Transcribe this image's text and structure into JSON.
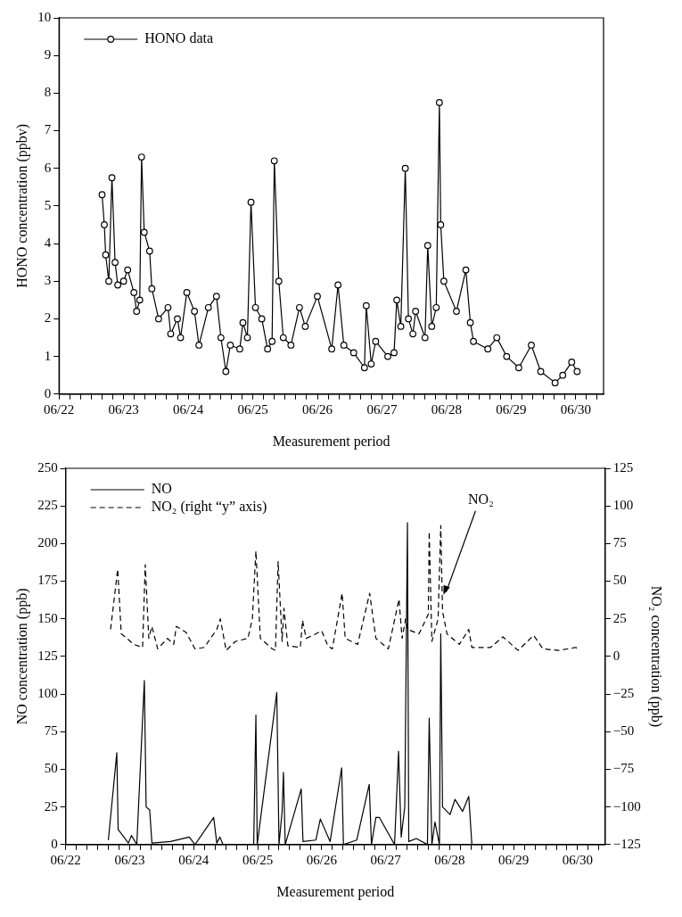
{
  "chart_data": [
    {
      "type": "line",
      "xlabel": "Measurement period",
      "ylabel": "HONO concentration (ppbv)",
      "legend": "top left",
      "marker": "circle",
      "grid": false,
      "xlim": [
        "--06-22",
        "--06-30T10:20"
      ],
      "ylim": [
        0,
        10
      ],
      "yticks": [
        0,
        1,
        2,
        3,
        4,
        5,
        6,
        7,
        8,
        9,
        10
      ],
      "xticks": [
        {
          "value": "--06-22",
          "label": "06/22"
        },
        {
          "value": "--06-22T04:00",
          "label": null
        },
        {
          "value": "--06-22T08:00",
          "label": null
        },
        {
          "value": "--06-22T12:00",
          "label": null
        },
        {
          "value": "--06-22T16:00",
          "label": null
        },
        {
          "value": "--06-22T20:00",
          "label": null
        },
        {
          "value": "--06-23",
          "label": "06/23"
        },
        {
          "value": "--06-23T04:00",
          "label": null
        },
        {
          "value": "--06-23T08:00",
          "label": null
        },
        {
          "value": "--06-23T12:00",
          "label": null
        },
        {
          "value": "--06-23T16:00",
          "label": null
        },
        {
          "value": "--06-23T20:00",
          "label": null
        },
        {
          "value": "--06-24",
          "label": "06/24"
        },
        {
          "value": "--06-24T04:00",
          "label": null
        },
        {
          "value": "--06-24T08:00",
          "label": null
        },
        {
          "value": "--06-24T12:00",
          "label": null
        },
        {
          "value": "--06-24T16:00",
          "label": null
        },
        {
          "value": "--06-24T20:00",
          "label": null
        },
        {
          "value": "--06-25",
          "label": "06/25"
        },
        {
          "value": "--06-25T04:00",
          "label": null
        },
        {
          "value": "--06-25T08:00",
          "label": null
        },
        {
          "value": "--06-25T12:00",
          "label": null
        },
        {
          "value": "--06-25T16:00",
          "label": null
        },
        {
          "value": "--06-25T20:00",
          "label": null
        },
        {
          "value": "--06-26",
          "label": "06/26"
        },
        {
          "value": "--06-26T04:00",
          "label": null
        },
        {
          "value": "--06-26T08:00",
          "label": null
        },
        {
          "value": "--06-26T12:00",
          "label": null
        },
        {
          "value": "--06-26T16:00",
          "label": null
        },
        {
          "value": "--06-26T20:00",
          "label": null
        },
        {
          "value": "--06-27",
          "label": "06/27"
        },
        {
          "value": "--06-27T04:00",
          "label": null
        },
        {
          "value": "--06-27T08:00",
          "label": null
        },
        {
          "value": "--06-27T12:00",
          "label": null
        },
        {
          "value": "--06-27T16:00",
          "label": null
        },
        {
          "value": "--06-27T20:00",
          "label": null
        },
        {
          "value": "--06-28",
          "label": "06/28"
        },
        {
          "value": "--06-28T04:00",
          "label": null
        },
        {
          "value": "--06-28T08:00",
          "label": null
        },
        {
          "value": "--06-28T12:00",
          "label": null
        },
        {
          "value": "--06-28T16:00",
          "label": null
        },
        {
          "value": "--06-28T20:00",
          "label": null
        },
        {
          "value": "--06-29",
          "label": "06/29"
        },
        {
          "value": "--06-29T04:00",
          "label": null
        },
        {
          "value": "--06-29T08:00",
          "label": null
        },
        {
          "value": "--06-29T12:00",
          "label": null
        },
        {
          "value": "--06-29T16:00",
          "label": null
        },
        {
          "value": "--06-29T20:00",
          "label": null
        },
        {
          "value": "--06-30",
          "label": "06/30"
        },
        {
          "value": "--06-30T04:00",
          "label": null
        },
        {
          "value": "--06-30T08:00",
          "label": null
        }
      ],
      "series": [
        {
          "name": "HONO data",
          "color": "#000000",
          "line_style": "solid",
          "x": [
            "--06-22T16:00",
            "--06-22T16:50",
            "--06-22T17:20",
            "--06-22T18:30",
            "--06-22T19:40",
            "--06-22T20:50",
            "--06-22T21:50",
            "--06-23",
            "--06-23T01:30",
            "--06-23T03:50",
            "--06-23T04:50",
            "--06-23T06:00",
            "--06-23T06:40",
            "--06-23T07:40",
            "--06-23T09:40",
            "--06-23T10:30",
            "--06-23T13:00",
            "--06-23T16:30",
            "--06-23T17:30",
            "--06-23T20:00",
            "--06-23T21:10",
            "--06-23T23:30",
            "--06-24T02:20",
            "--06-24T04:00",
            "--06-24T07:30",
            "--06-24T10:30",
            "--06-24T12:10",
            "--06-24T14:00",
            "--06-24T15:40",
            "--06-24T19:10",
            "--06-24T20:20",
            "--06-24T22:00",
            "--06-24T23:20",
            "--06-25T01:00",
            "--06-25T03:20",
            "--06-25T05:30",
            "--06-25T07:10",
            "--06-25T08:00",
            "--06-25T09:40",
            "--06-25T11:20",
            "--06-25T14:10",
            "--06-25T17:20",
            "--06-25T19:30",
            "--06-26",
            "--06-26T05:20",
            "--06-26T07:40",
            "--06-26T09:50",
            "--06-26T13:30",
            "--06-26T17:30",
            "--06-26T18:10",
            "--06-26T20:00",
            "--06-26T21:40",
            "--06-27T02:10",
            "--06-27T04:30",
            "--06-27T05:30",
            "--06-27T07:00",
            "--06-27T08:40",
            "--06-27T09:50",
            "--06-27T11:30",
            "--06-27T12:30",
            "--06-27T16:00",
            "--06-27T17:00",
            "--06-27T18:30",
            "--06-27T20:10",
            "--06-27T21:20",
            "--06-27T21:50",
            "--06-27T23:00",
            "--06-28T03:40",
            "--06-28T07:10",
            "--06-28T08:50",
            "--06-28T10:00",
            "--06-28T15:20",
            "--06-28T18:40",
            "--06-28T22:20",
            "--06-29T02:50",
            "--06-29T07:30",
            "--06-29T11:00",
            "--06-29T16:20",
            "--06-29T19:10",
            "--06-29T22:30",
            "--06-30T00:30"
          ],
          "values": [
            5.3,
            4.5,
            3.7,
            3.0,
            5.75,
            3.5,
            2.9,
            3.0,
            3.3,
            2.7,
            2.2,
            2.5,
            6.3,
            4.3,
            3.8,
            2.8,
            2.0,
            2.3,
            1.6,
            2.0,
            1.5,
            2.7,
            2.2,
            1.3,
            2.3,
            2.6,
            1.5,
            0.6,
            1.3,
            1.2,
            1.9,
            1.5,
            5.1,
            2.3,
            2.0,
            1.2,
            1.4,
            6.2,
            3.0,
            1.5,
            1.3,
            2.3,
            1.8,
            2.6,
            1.2,
            2.9,
            1.3,
            1.1,
            0.7,
            2.35,
            0.8,
            1.4,
            1.0,
            1.1,
            2.5,
            1.8,
            6.0,
            2.0,
            1.6,
            2.2,
            1.5,
            3.95,
            1.8,
            2.3,
            7.75,
            4.5,
            3.0,
            2.2,
            3.3,
            1.9,
            1.4,
            1.2,
            1.5,
            1.0,
            0.7,
            1.3,
            0.6,
            0.3,
            0.5,
            0.85,
            0.6
          ]
        }
      ]
    },
    {
      "type": "line",
      "xlabel": "Measurement period",
      "ylabel": "NO concentration (ppb)",
      "y2label": "NO₂ concentration (ppb)",
      "legend": "top left",
      "marker": "none",
      "grid": false,
      "xlim": [
        "--06-22",
        "--06-30T10:20"
      ],
      "ylim": [
        0,
        250
      ],
      "yticks": [
        0,
        25,
        50,
        75,
        100,
        125,
        150,
        175,
        200,
        225,
        250
      ],
      "y2lim": [
        -125,
        125
      ],
      "y2ticks": [
        -125,
        -100,
        -75,
        -50,
        -25,
        0,
        25,
        50,
        75,
        100,
        125
      ],
      "xticks": [
        {
          "value": "--06-22",
          "label": "06/22"
        },
        {
          "value": "--06-22T04:00",
          "label": null
        },
        {
          "value": "--06-22T08:00",
          "label": null
        },
        {
          "value": "--06-22T12:00",
          "label": null
        },
        {
          "value": "--06-22T16:00",
          "label": null
        },
        {
          "value": "--06-22T20:00",
          "label": null
        },
        {
          "value": "--06-23",
          "label": "06/23"
        },
        {
          "value": "--06-23T04:00",
          "label": null
        },
        {
          "value": "--06-23T08:00",
          "label": null
        },
        {
          "value": "--06-23T12:00",
          "label": null
        },
        {
          "value": "--06-23T16:00",
          "label": null
        },
        {
          "value": "--06-23T20:00",
          "label": null
        },
        {
          "value": "--06-24",
          "label": "06/24"
        },
        {
          "value": "--06-24T04:00",
          "label": null
        },
        {
          "value": "--06-24T08:00",
          "label": null
        },
        {
          "value": "--06-24T12:00",
          "label": null
        },
        {
          "value": "--06-24T16:00",
          "label": null
        },
        {
          "value": "--06-24T20:00",
          "label": null
        },
        {
          "value": "--06-25",
          "label": "06/25"
        },
        {
          "value": "--06-25T04:00",
          "label": null
        },
        {
          "value": "--06-25T08:00",
          "label": null
        },
        {
          "value": "--06-25T12:00",
          "label": null
        },
        {
          "value": "--06-25T16:00",
          "label": null
        },
        {
          "value": "--06-25T20:00",
          "label": null
        },
        {
          "value": "--06-26",
          "label": "06/26"
        },
        {
          "value": "--06-26T04:00",
          "label": null
        },
        {
          "value": "--06-26T08:00",
          "label": null
        },
        {
          "value": "--06-26T12:00",
          "label": null
        },
        {
          "value": "--06-26T16:00",
          "label": null
        },
        {
          "value": "--06-26T20:00",
          "label": null
        },
        {
          "value": "--06-27",
          "label": "06/27"
        },
        {
          "value": "--06-27T04:00",
          "label": null
        },
        {
          "value": "--06-27T08:00",
          "label": null
        },
        {
          "value": "--06-27T12:00",
          "label": null
        },
        {
          "value": "--06-27T16:00",
          "label": null
        },
        {
          "value": "--06-27T20:00",
          "label": null
        },
        {
          "value": "--06-28",
          "label": "06/28"
        },
        {
          "value": "--06-28T04:00",
          "label": null
        },
        {
          "value": "--06-28T08:00",
          "label": null
        },
        {
          "value": "--06-28T12:00",
          "label": null
        },
        {
          "value": "--06-28T16:00",
          "label": null
        },
        {
          "value": "--06-28T20:00",
          "label": null
        },
        {
          "value": "--06-29",
          "label": "06/29"
        },
        {
          "value": "--06-29T04:00",
          "label": null
        },
        {
          "value": "--06-29T08:00",
          "label": null
        },
        {
          "value": "--06-29T12:00",
          "label": null
        },
        {
          "value": "--06-29T16:00",
          "label": null
        },
        {
          "value": "--06-29T20:00",
          "label": null
        },
        {
          "value": "--06-30",
          "label": "06/30"
        },
        {
          "value": "--06-30T04:00",
          "label": null
        },
        {
          "value": "--06-30T08:00",
          "label": null
        }
      ],
      "annotations": [
        {
          "text": "NO₂",
          "x": "--06-27T21:40",
          "y": 166
        }
      ],
      "series": [
        {
          "name": "NO",
          "color": "#000000",
          "line_style": "solid",
          "x": [
            "--06-22T16:00",
            "--06-22T19:10",
            "--06-22T19:40",
            "--06-22T21:50",
            "--06-22T23:30",
            "--06-23T00:40",
            "--06-23T02:40",
            "--06-23T05:30",
            "--06-23T06:10",
            "--06-23T07:30",
            "--06-23T08:20",
            "--06-23T15:20",
            "--06-23T22:20",
            "--06-24T00:30",
            "--06-24T07:30",
            "--06-24T08:40",
            "--06-24T09:50",
            "--06-24T11:00",
            "--06-24T22:30",
            "--06-24T23:20",
            "--06-24T23:50",
            "--06-25T07:10",
            "--06-25T08:00",
            "--06-25T09:10",
            "--06-25T09:40",
            "--06-25T10:20",
            "--06-25T16:20",
            "--06-25T17:00",
            "--06-25T21:50",
            "--06-25T23:30",
            "--06-26T03:10",
            "--06-26T07:30",
            "--06-26T08:10",
            "--06-26T13:10",
            "--06-26T17:50",
            "--06-26T18:40",
            "--06-26T20:20",
            "--06-26T21:40",
            "--06-27T03:20",
            "--06-27T04:50",
            "--06-27T05:50",
            "--06-27T07:10",
            "--06-27T08:10",
            "--06-27T08:40",
            "--06-27T11:30",
            "--06-27T15:40",
            "--06-27T16:20",
            "--06-27T17:20",
            "--06-27T18:30",
            "--06-27T20:10",
            "--06-27T20:40",
            "--06-27T21:20",
            "--06-28T00:10",
            "--06-28T02:00",
            "--06-28T04:50",
            "--06-28T07:10",
            "--06-28T08:20",
            "--06-30T00:30"
          ],
          "values": [
            3,
            61,
            10,
            5,
            1,
            6,
            0,
            109,
            25,
            23,
            1,
            2,
            5,
            0,
            18,
            1,
            5,
            0,
            0,
            86,
            0,
            101,
            0,
            22,
            48,
            0,
            37,
            2,
            3,
            17,
            2,
            51,
            0,
            3,
            40,
            0,
            18,
            18,
            0,
            62,
            5,
            25,
            214,
            2,
            4,
            0,
            84,
            0,
            15,
            0,
            140,
            25,
            20,
            30,
            22,
            32,
            0,
            0
          ]
        },
        {
          "name": "NO₂ (right “y” axis)",
          "color": "#000000",
          "line_style": "dashed",
          "axis": "y2",
          "x": [
            "--06-22T16:50",
            "--06-22T19:30",
            "--06-22T20:50",
            "--06-22T23:00",
            "--06-23T01:30",
            "--06-23T04:50",
            "--06-23T05:50",
            "--06-23T07:10",
            "--06-23T08:20",
            "--06-23T10:30",
            "--06-23T14:10",
            "--06-23T16:30",
            "--06-23T17:30",
            "--06-23T21:10",
            "--06-24T00:30",
            "--06-24T04:00",
            "--06-24T08:40",
            "--06-24T10:00",
            "--06-24T12:10",
            "--06-24T15:40",
            "--06-24T20:20",
            "--06-24T22:00",
            "--06-24T23:20",
            "--06-25T01:00",
            "--06-25T05:30",
            "--06-25T06:40",
            "--06-25T07:40",
            "--06-25T09:10",
            "--06-25T09:50",
            "--06-25T11:20",
            "--06-25T16:00",
            "--06-25T16:50",
            "--06-25T18:10",
            "--06-25T21:50",
            "--06-26",
            "--06-26T02:20",
            "--06-26T04:00",
            "--06-26T07:40",
            "--06-26T08:50",
            "--06-26T13:30",
            "--06-26T18:00",
            "--06-26T20:20",
            "--06-27T01:00",
            "--06-27T05:00",
            "--06-27T06:10",
            "--06-27T07:30",
            "--06-27T08:10",
            "--06-27T12:30",
            "--06-27T16:00",
            "--06-27T16:20",
            "--06-27T17:20",
            "--06-27T19:40",
            "--06-27T20:40",
            "--06-27T21:20",
            "--06-27T23:00",
            "--06-28T03:40",
            "--06-28T07:10",
            "--06-28T08:20",
            "--06-28T15:20",
            "--06-28T20:00",
            "--06-29T01:40",
            "--06-29T07:30",
            "--06-29T11:00",
            "--06-29T16:50",
            "--06-29T23:20",
            "--06-30T00:30"
          ],
          "values": [
            18,
            58,
            15,
            12,
            8,
            6,
            61,
            12,
            20,
            5,
            12,
            8,
            20,
            16,
            5,
            6,
            18,
            25,
            4,
            10,
            12,
            25,
            70,
            12,
            5,
            4,
            63,
            10,
            32,
            7,
            6,
            24,
            12,
            15,
            17,
            7,
            5,
            42,
            12,
            8,
            42,
            12,
            5,
            38,
            12,
            25,
            18,
            15,
            28,
            83,
            10,
            25,
            87,
            30,
            15,
            8,
            18,
            6,
            6,
            13,
            4,
            14,
            5,
            4,
            6,
            4
          ]
        }
      ]
    }
  ]
}
